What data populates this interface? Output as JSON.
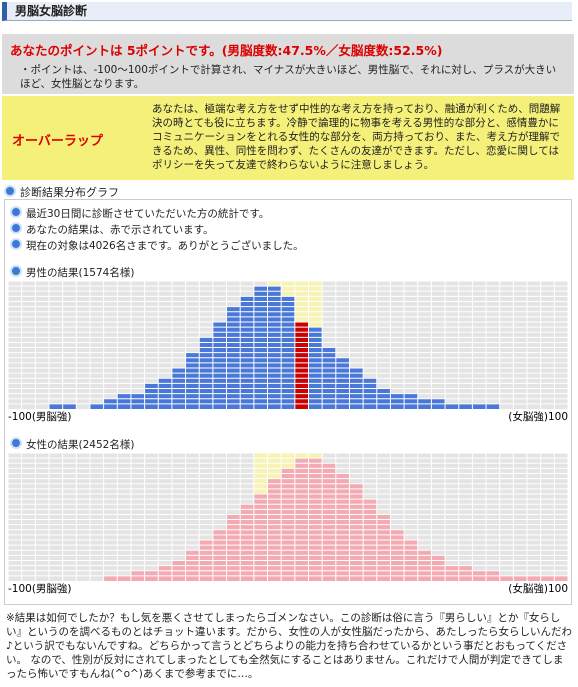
{
  "header": {
    "title": "男脳女脳診断"
  },
  "result": {
    "title": "あなたのポイントは 5ポイントです。(男脳度数:47.5%／女脳度数:52.5%)",
    "note": "・ポイントは、-100〜100ポイントで計算され、マイナスが大きいほど、男性脳で、それに対し、プラスが大きいほど、女性脳となります。"
  },
  "type": {
    "label": "オーバーラップ",
    "description": "あなたは、極端な考え方をせず中性的な考え方を持っており、融通が利くため、問題解決の時とても役に立ちます。冷静で論理的に物事を考える男性的な部分と、感情豊かにコミュニケーションをとれる女性的な部分を、両方持っており、また、考え方が理解できるため、異性、同性を問わず、たくさんの友達ができます。ただし、恋愛に関してはポリシーを失って友達で終わらないように注意しましょう。"
  },
  "graph": {
    "title": "診断結果分布グラフ",
    "info": [
      "最近30日間に診断させていただいた方の統計です。",
      "あなたの結果は、赤で示されています。",
      "現在の対象は4026名さまです。ありがとうございました。"
    ]
  },
  "chart_data": [
    {
      "type": "bar",
      "title": "男性の結果(1574名様)",
      "xlim": [
        -100,
        100
      ],
      "xticks": [
        {
          "value": -100,
          "label": "-100(男脳強)"
        },
        {
          "value": 100,
          "label": "(女脳強)100"
        }
      ],
      "ylim": [
        0,
        25
      ],
      "values": [
        0,
        0,
        0,
        1,
        1,
        0,
        1,
        2,
        3,
        3,
        5,
        6,
        8,
        11,
        14,
        17,
        20,
        22,
        24,
        24,
        22,
        17,
        16,
        12,
        10,
        8,
        6,
        4,
        3,
        3,
        2,
        2,
        1,
        1,
        1,
        1,
        0,
        0,
        0,
        0,
        0
      ],
      "color": "#4a78d8",
      "overlap": [
        -5,
        10
      ],
      "overlap_color": "#f6f3b4",
      "highlight": {
        "x": 5,
        "color": "#cc0000"
      }
    },
    {
      "type": "bar",
      "title": "女性の結果(2452名様)",
      "xlim": [
        -100,
        100
      ],
      "xticks": [
        {
          "value": -100,
          "label": "-100(男脳強)"
        },
        {
          "value": 100,
          "label": "(女脳強)100"
        }
      ],
      "ylim": [
        0,
        25
      ],
      "values": [
        0,
        0,
        0,
        0,
        0,
        0,
        0,
        1,
        1,
        2,
        2,
        3,
        4,
        6,
        8,
        10,
        13,
        15,
        17,
        20,
        22,
        24,
        24,
        23,
        21,
        19,
        16,
        13,
        10,
        8,
        6,
        5,
        3,
        3,
        2,
        2,
        1,
        1,
        1,
        1,
        1
      ],
      "color": "#f4aab2",
      "overlap": [
        -10,
        10
      ],
      "overlap_color": "#f6f3b4"
    }
  ],
  "footer": "※結果は如何でしたか？もし気を悪くさせてしまったらゴメンなさい。この診断は俗に言う『男らしい』とか『女らしい』というのを調べるものとはチョット違います。だから、女性の人が女性脳だったから、あたしったら女らしいんだわ♪という訳でもないんですね。どちらかって言うとどちらよりの能力を持ち合わせているかという事だとおもってください。 なので、性別が反対にされてしまったとしても全然気にすることはありません。これだけで人間が判定できてしまったら怖いですもんね(^o^)あくまで参考までに…。"
}
